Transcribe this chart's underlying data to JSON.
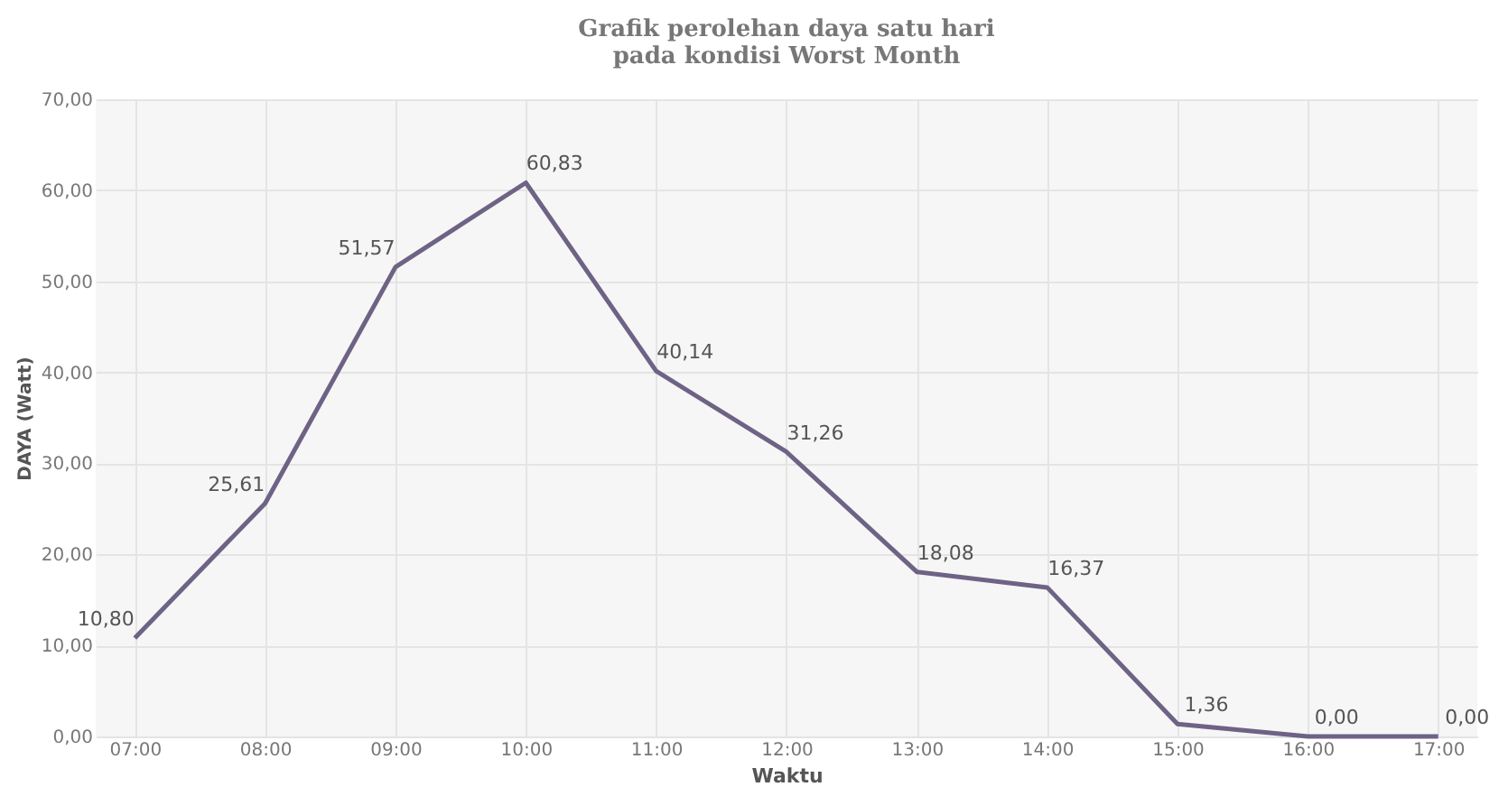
{
  "chart_data": {
    "type": "line",
    "title": [
      "Grafik perolehan daya satu hari",
      "pada kondisi Worst Month"
    ],
    "xlabel": "Waktu",
    "ylabel": "DAYA (Watt)",
    "categories": [
      "07:00",
      "08:00",
      "09:00",
      "10:00",
      "11:00",
      "12:00",
      "13:00",
      "14:00",
      "15:00",
      "16:00",
      "17:00"
    ],
    "series": [
      {
        "color": "#6e6385",
        "values": [
          10.8,
          25.61,
          51.57,
          60.83,
          40.14,
          31.26,
          18.08,
          16.37,
          1.36,
          0.0,
          0.0
        ],
        "value_labels": [
          "10,80",
          "25,61",
          "51,57",
          "60,83",
          "40,14",
          "31,26",
          "18,08",
          "16,37",
          "1,36",
          "0,00",
          "0,00"
        ]
      }
    ],
    "ylim": [
      0,
      70
    ],
    "yticks": [
      {
        "value": 0,
        "label": "0,00"
      },
      {
        "value": 10,
        "label": "10,00"
      },
      {
        "value": 20,
        "label": "20,00"
      },
      {
        "value": 30,
        "label": "30,00"
      },
      {
        "value": 40,
        "label": "40,00"
      },
      {
        "value": 50,
        "label": "50,00"
      },
      {
        "value": 60,
        "label": "60,00"
      },
      {
        "value": 70,
        "label": "70,00"
      }
    ],
    "grid": true,
    "marker": "none",
    "line_style": "solid"
  }
}
